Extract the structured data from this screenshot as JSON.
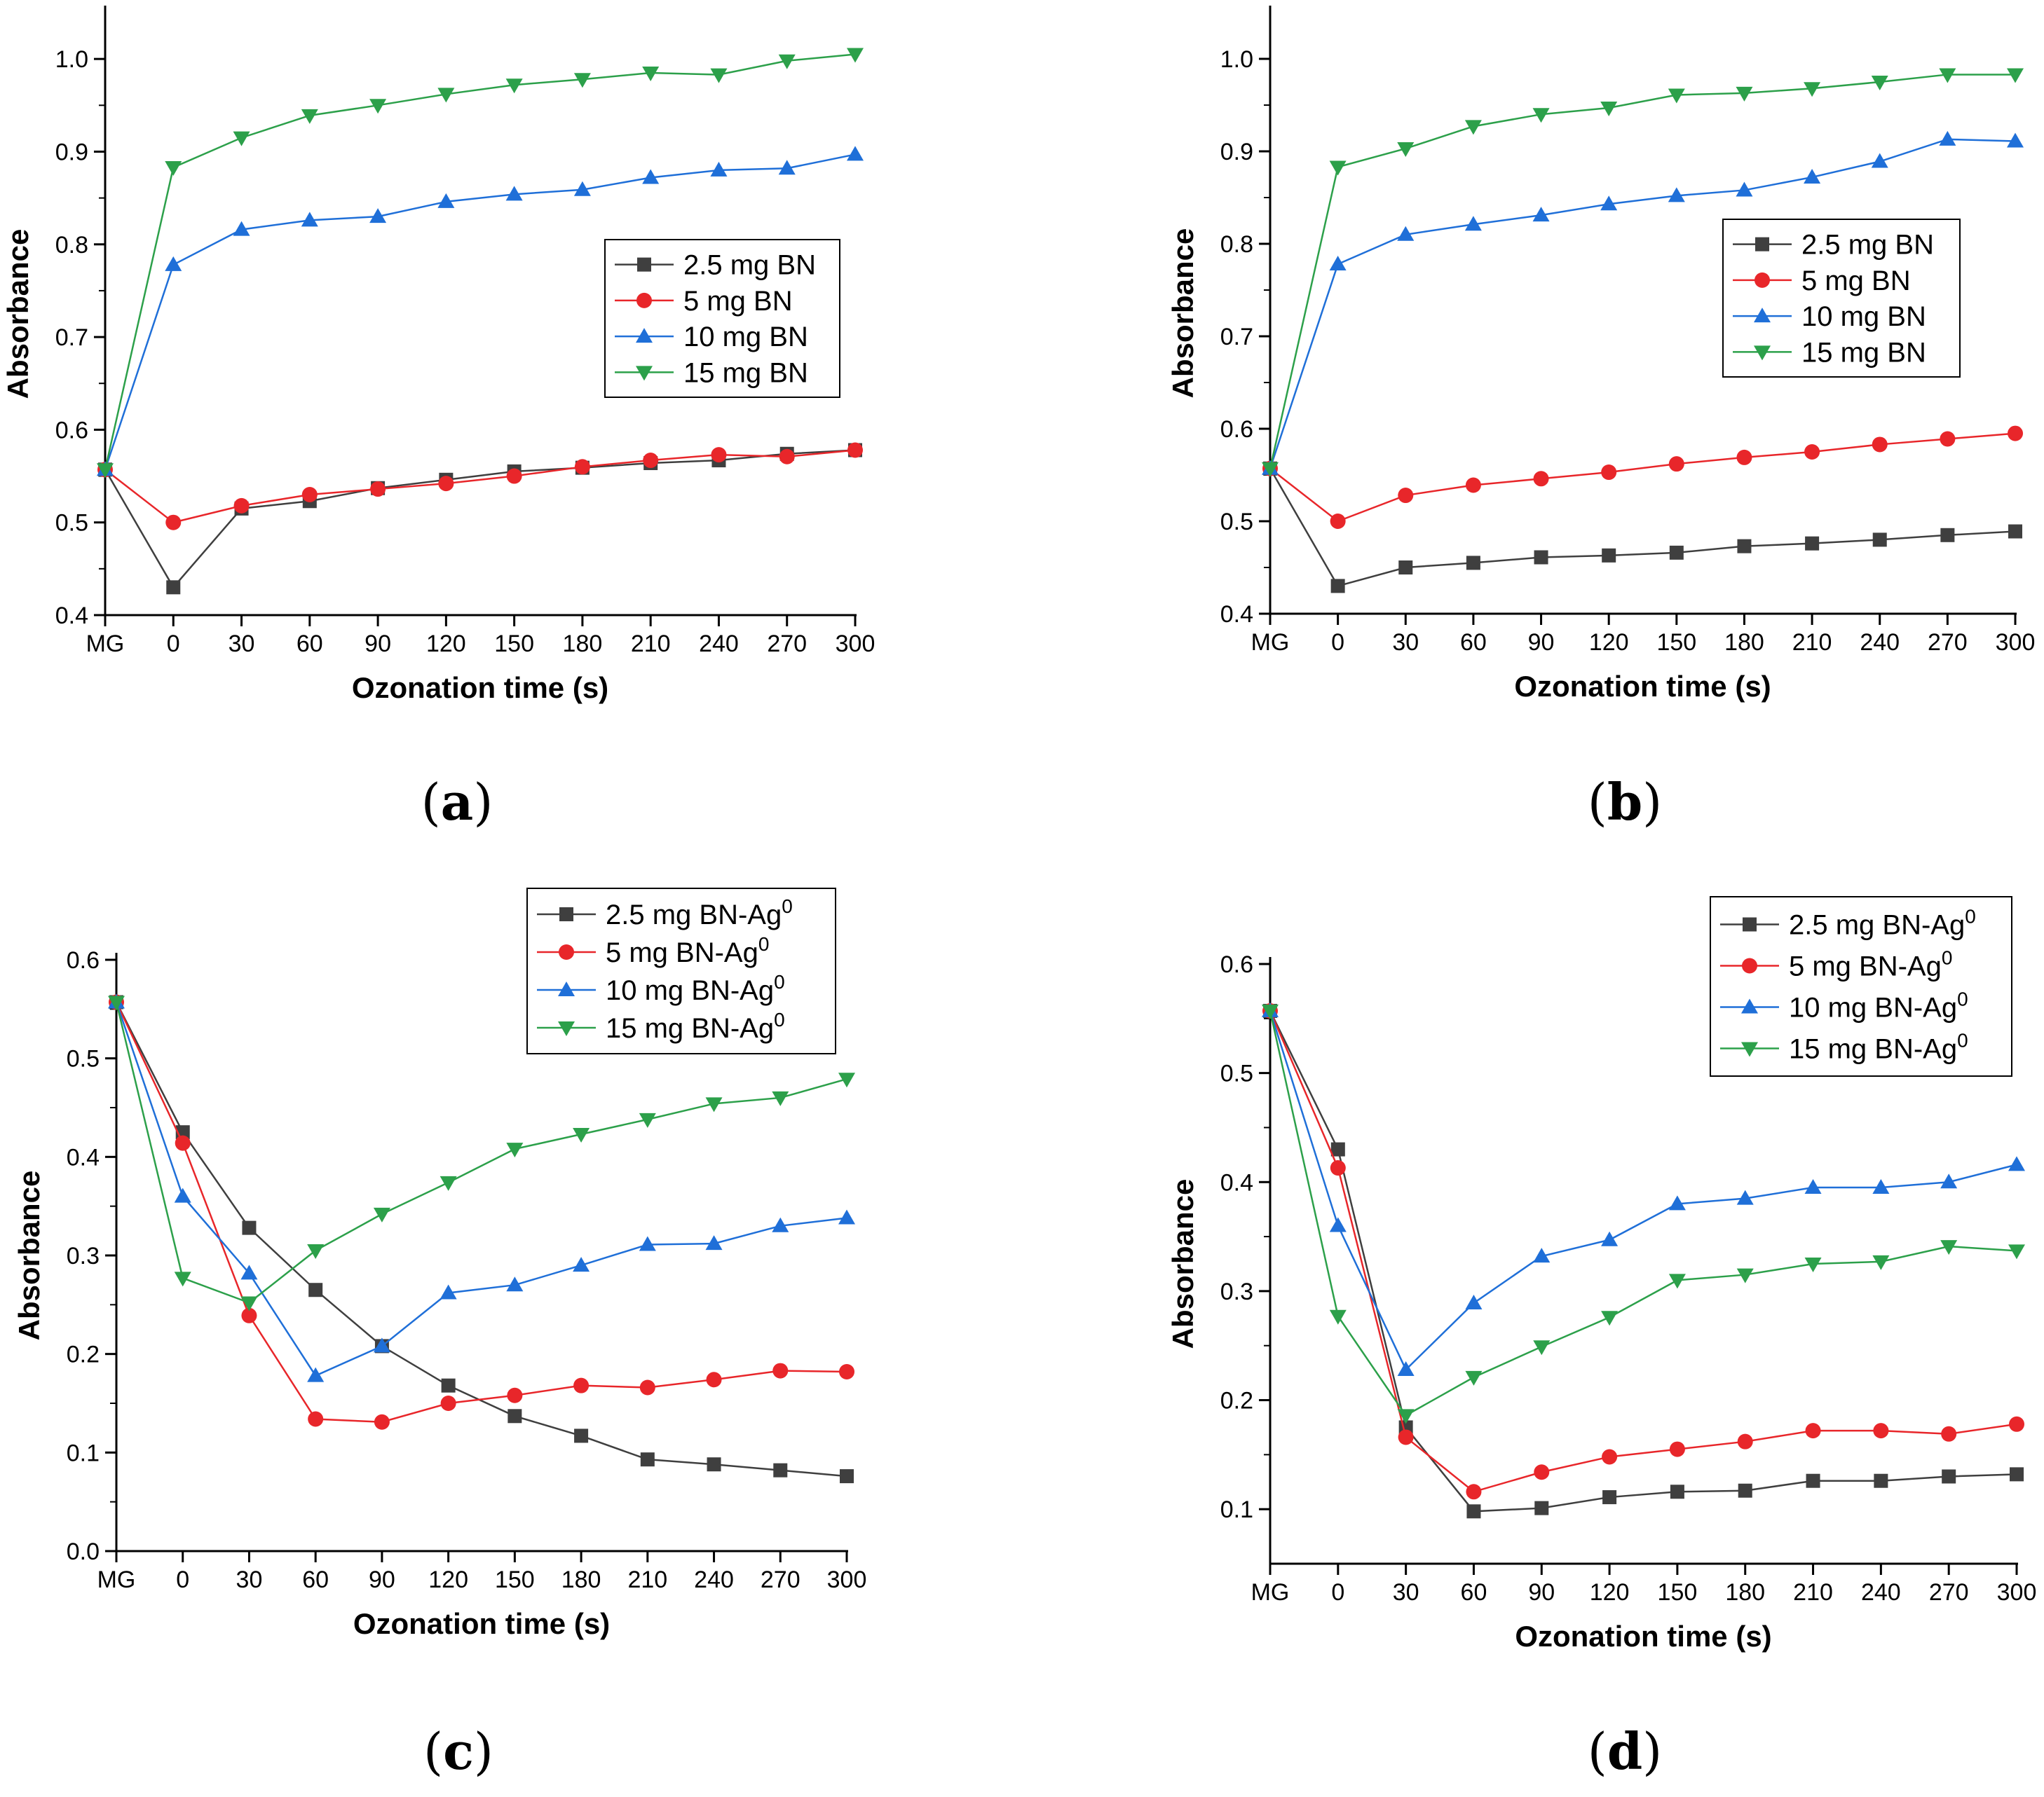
{
  "colors": {
    "2.5": "#3f3f3f",
    "5": "#e8262a",
    "10": "#1f6fd8",
    "15": "#2ca04a"
  },
  "chart_data": [
    {
      "id": "a",
      "type": "line",
      "panel_label": "a",
      "xlabel": "Ozonation time (s)",
      "ylabel": "Absorbance",
      "categories": [
        "MG",
        "0",
        "30",
        "60",
        "90",
        "120",
        "150",
        "180",
        "210",
        "240",
        "270",
        "300"
      ],
      "ylim": [
        0.4,
        1.05
      ],
      "yticks": [
        "0.4",
        "0.5",
        "0.6",
        "0.7",
        "0.8",
        "0.9",
        "1.0"
      ],
      "legend_position": "center-right",
      "series": [
        {
          "name": "2.5 mg BN",
          "marker": "square",
          "color_key": "2.5",
          "values": [
            0.557,
            0.43,
            0.515,
            0.523,
            0.537,
            0.546,
            0.555,
            0.559,
            0.564,
            0.567,
            0.574,
            0.578
          ]
        },
        {
          "name": "5 mg BN",
          "marker": "circle",
          "color_key": "5",
          "values": [
            0.557,
            0.5,
            0.518,
            0.53,
            0.536,
            0.542,
            0.55,
            0.56,
            0.567,
            0.573,
            0.571,
            0.578
          ]
        },
        {
          "name": "10 mg BN",
          "marker": "triangle-up",
          "color_key": "10",
          "values": [
            0.557,
            0.778,
            0.816,
            0.826,
            0.83,
            0.846,
            0.854,
            0.859,
            0.872,
            0.88,
            0.882,
            0.897
          ]
        },
        {
          "name": "15 mg BN",
          "marker": "triangle-down",
          "color_key": "15",
          "values": [
            0.557,
            0.883,
            0.915,
            0.939,
            0.95,
            0.962,
            0.972,
            0.978,
            0.985,
            0.983,
            0.998,
            1.005
          ]
        }
      ]
    },
    {
      "id": "b",
      "type": "line",
      "panel_label": "b",
      "xlabel": "Ozonation time (s)",
      "ylabel": "Absorbance",
      "categories": [
        "MG",
        "0",
        "30",
        "60",
        "90",
        "120",
        "150",
        "180",
        "210",
        "240",
        "270",
        "300"
      ],
      "ylim": [
        0.4,
        1.05
      ],
      "yticks": [
        "0.4",
        "0.5",
        "0.6",
        "0.7",
        "0.8",
        "0.9",
        "1.0"
      ],
      "legend_position": "center-right",
      "series": [
        {
          "name": "2.5 mg BN",
          "marker": "square",
          "color_key": "2.5",
          "values": [
            0.557,
            0.43,
            0.45,
            0.455,
            0.461,
            0.463,
            0.466,
            0.473,
            0.476,
            0.48,
            0.485,
            0.489
          ]
        },
        {
          "name": "5 mg BN",
          "marker": "circle",
          "color_key": "5",
          "values": [
            0.557,
            0.5,
            0.528,
            0.539,
            0.546,
            0.553,
            0.562,
            0.569,
            0.575,
            0.583,
            0.589,
            0.595
          ]
        },
        {
          "name": "10 mg BN",
          "marker": "triangle-up",
          "color_key": "10",
          "values": [
            0.557,
            0.778,
            0.81,
            0.821,
            0.831,
            0.843,
            0.852,
            0.858,
            0.872,
            0.889,
            0.913,
            0.911
          ]
        },
        {
          "name": "15 mg BN",
          "marker": "triangle-down",
          "color_key": "15",
          "values": [
            0.557,
            0.883,
            0.903,
            0.927,
            0.94,
            0.947,
            0.961,
            0.963,
            0.968,
            0.975,
            0.983,
            0.983
          ]
        }
      ]
    },
    {
      "id": "c",
      "type": "line",
      "panel_label": "c",
      "xlabel": "Ozonation time (s)",
      "ylabel": "Absorbance",
      "categories": [
        "MG",
        "0",
        "30",
        "60",
        "90",
        "120",
        "150",
        "180",
        "210",
        "240",
        "270",
        "300"
      ],
      "ylim": [
        0.0,
        0.6
      ],
      "yticks": [
        "0.0",
        "0.1",
        "0.2",
        "0.3",
        "0.4",
        "0.5",
        "0.6"
      ],
      "legend_position": "top-right",
      "series": [
        {
          "name": "2.5 mg BN-Ag",
          "name_sup": "0",
          "marker": "square",
          "color_key": "2.5",
          "values": [
            0.557,
            0.425,
            0.328,
            0.265,
            0.208,
            0.168,
            0.137,
            0.117,
            0.093,
            0.088,
            0.082,
            0.076
          ]
        },
        {
          "name": "5 mg BN-Ag",
          "name_sup": "0",
          "marker": "circle",
          "color_key": "5",
          "values": [
            0.557,
            0.414,
            0.239,
            0.134,
            0.131,
            0.15,
            0.158,
            0.168,
            0.166,
            0.174,
            0.183,
            0.182
          ]
        },
        {
          "name": "10 mg BN-Ag",
          "name_sup": "0",
          "marker": "triangle-up",
          "color_key": "10",
          "values": [
            0.557,
            0.36,
            0.282,
            0.178,
            0.208,
            0.262,
            0.27,
            0.29,
            0.311,
            0.312,
            0.33,
            0.338
          ]
        },
        {
          "name": "15 mg BN-Ag",
          "name_sup": "0",
          "marker": "triangle-down",
          "color_key": "15",
          "values": [
            0.557,
            0.277,
            0.252,
            0.305,
            0.342,
            0.374,
            0.408,
            0.423,
            0.438,
            0.454,
            0.46,
            0.479
          ]
        }
      ]
    },
    {
      "id": "d",
      "type": "line",
      "panel_label": "d",
      "xlabel": "Ozonation time (s)",
      "ylabel": "Absorbance",
      "categories": [
        "MG",
        "0",
        "30",
        "60",
        "90",
        "120",
        "150",
        "180",
        "210",
        "240",
        "270",
        "300"
      ],
      "ylim": [
        0.05,
        0.6
      ],
      "yticks": [
        "0.1",
        "0.2",
        "0.3",
        "0.4",
        "0.5",
        "0.6"
      ],
      "legend_position": "top-right",
      "series": [
        {
          "name": "2.5 mg BN-Ag",
          "name_sup": "0",
          "marker": "square",
          "color_key": "2.5",
          "values": [
            0.557,
            0.43,
            0.175,
            0.098,
            0.101,
            0.111,
            0.116,
            0.117,
            0.126,
            0.126,
            0.13,
            0.132
          ]
        },
        {
          "name": "5 mg BN-Ag",
          "name_sup": "0",
          "marker": "circle",
          "color_key": "5",
          "values": [
            0.557,
            0.413,
            0.166,
            0.116,
            0.134,
            0.148,
            0.155,
            0.162,
            0.172,
            0.172,
            0.169,
            0.178
          ]
        },
        {
          "name": "10 mg BN-Ag",
          "name_sup": "0",
          "marker": "triangle-up",
          "color_key": "10",
          "values": [
            0.557,
            0.36,
            0.228,
            0.289,
            0.332,
            0.347,
            0.38,
            0.385,
            0.395,
            0.395,
            0.4,
            0.416
          ]
        },
        {
          "name": "15 mg BN-Ag",
          "name_sup": "0",
          "marker": "triangle-down",
          "color_key": "15",
          "values": [
            0.557,
            0.277,
            0.186,
            0.221,
            0.249,
            0.276,
            0.31,
            0.315,
            0.325,
            0.327,
            0.341,
            0.337
          ]
        }
      ]
    }
  ]
}
